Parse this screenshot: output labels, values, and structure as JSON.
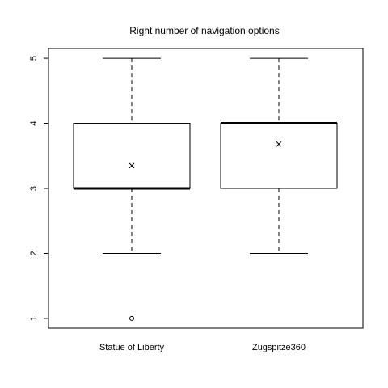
{
  "chart_data": {
    "type": "boxplot",
    "title": "Right number of navigation options",
    "xlabel": "",
    "ylabel": "",
    "ylim": [
      0.85,
      5.15
    ],
    "yticks": [
      "1",
      "2",
      "3",
      "4",
      "5"
    ],
    "categories": [
      "Statue of Liberty",
      "Zugspitze360"
    ],
    "boxes": [
      {
        "category": "Statue of Liberty",
        "whisker_low": 2,
        "q1": 3,
        "median": 3,
        "q3": 4,
        "whisker_high": 5,
        "mean": 3.35,
        "outliers": [
          1
        ]
      },
      {
        "category": "Zugspitze360",
        "whisker_low": 2,
        "q1": 3,
        "median": 4,
        "q3": 4,
        "whisker_high": 5,
        "mean": 3.68,
        "outliers": []
      }
    ],
    "grid": false,
    "legend": "none"
  },
  "colors": {
    "stroke": "#000000",
    "background": "#ffffff"
  }
}
